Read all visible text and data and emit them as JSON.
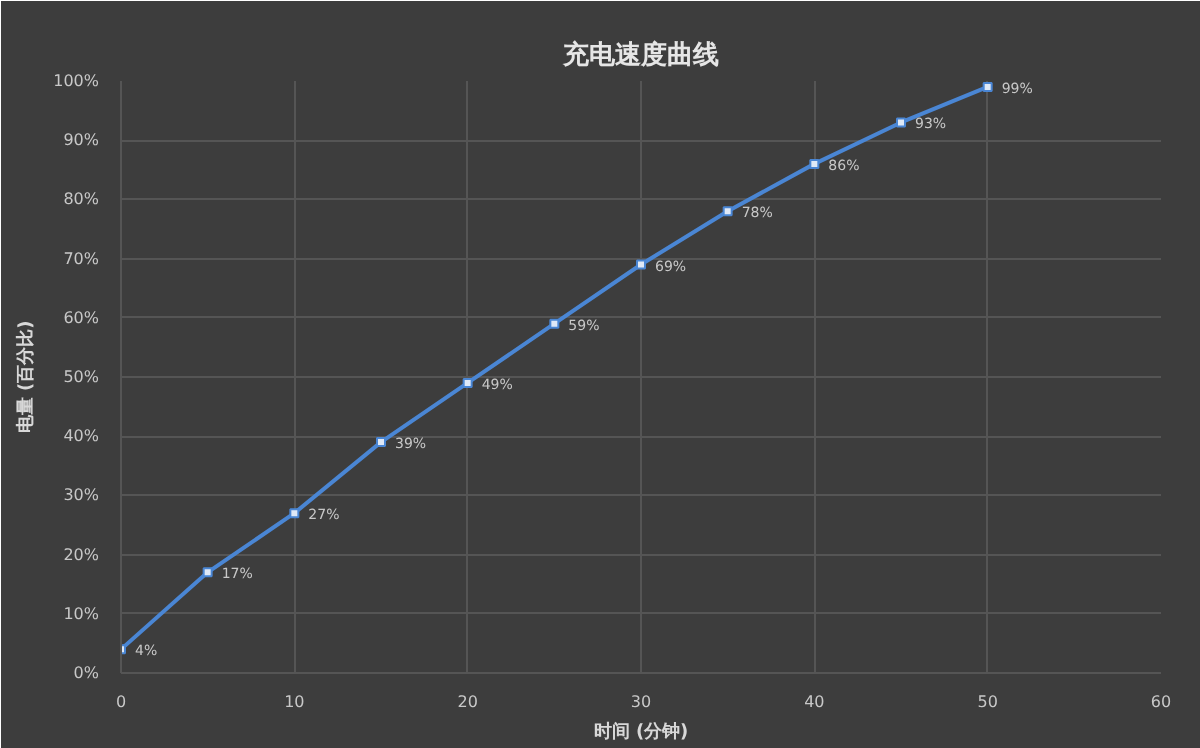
{
  "chart_data": {
    "type": "line",
    "title": "充电速度曲线",
    "xlabel": "时间 (分钟)",
    "ylabel": "电量 (百分比)",
    "x": [
      0,
      5,
      10,
      15,
      20,
      25,
      30,
      35,
      40,
      45,
      50
    ],
    "series": [
      {
        "color": "#4a86d4",
        "values": [
          4,
          17,
          27,
          39,
          49,
          59,
          69,
          78,
          86,
          93,
          99
        ],
        "value_labels": [
          "4%",
          "17%",
          "27%",
          "39%",
          "49%",
          "59%",
          "69%",
          "78%",
          "86%",
          "93%",
          "99%"
        ]
      }
    ],
    "xlim": [
      0,
      60
    ],
    "xticks": [
      0,
      10,
      20,
      30,
      40,
      50,
      60
    ],
    "ylim": [
      0,
      100
    ],
    "yticks": [
      {
        "value": 0,
        "label": "0%"
      },
      {
        "value": 10,
        "label": "10%"
      },
      {
        "value": 20,
        "label": "20%"
      },
      {
        "value": 30,
        "label": "30%"
      },
      {
        "value": 40,
        "label": "40%"
      },
      {
        "value": 50,
        "label": "50%"
      },
      {
        "value": 60,
        "label": "60%"
      },
      {
        "value": 70,
        "label": "70%"
      },
      {
        "value": 80,
        "label": "80%"
      },
      {
        "value": 90,
        "label": "90%"
      },
      {
        "value": 100,
        "label": "100%"
      }
    ],
    "grid": true,
    "marker": "square",
    "line_style": "solid"
  }
}
